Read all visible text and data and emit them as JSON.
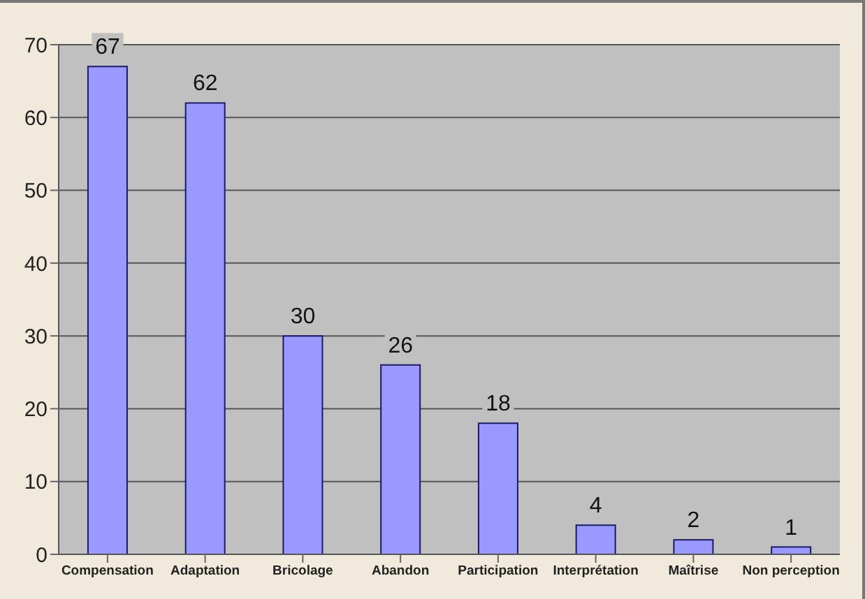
{
  "chart_data": {
    "type": "bar",
    "categories": [
      "Compensation",
      "Adaptation",
      "Bricolage",
      "Abandon",
      "Participation",
      "Interprétation",
      "Maîtrise",
      "Non perception"
    ],
    "values": [
      67,
      62,
      30,
      26,
      18,
      4,
      2,
      1
    ],
    "color": "#9999ff",
    "ylim": [
      0,
      70
    ],
    "yticks": [
      0,
      10,
      20,
      30,
      40,
      50,
      60,
      70
    ],
    "grid": "y",
    "data_labels": true
  }
}
